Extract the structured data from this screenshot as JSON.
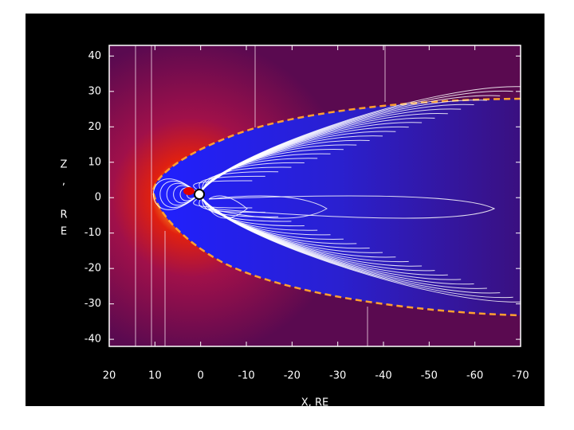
{
  "chart_data": {
    "type": "field",
    "xlabel": "X, RE",
    "ylabel": "Z, RE",
    "xlim": [
      20,
      -70
    ],
    "ylim": [
      -42,
      43
    ],
    "xticks": [
      20,
      10,
      0,
      -10,
      -20,
      -30,
      -40,
      -50,
      -60,
      -70
    ],
    "yticks": [
      40,
      30,
      20,
      10,
      0,
      -10,
      -20,
      -30,
      -40
    ]
  }
}
